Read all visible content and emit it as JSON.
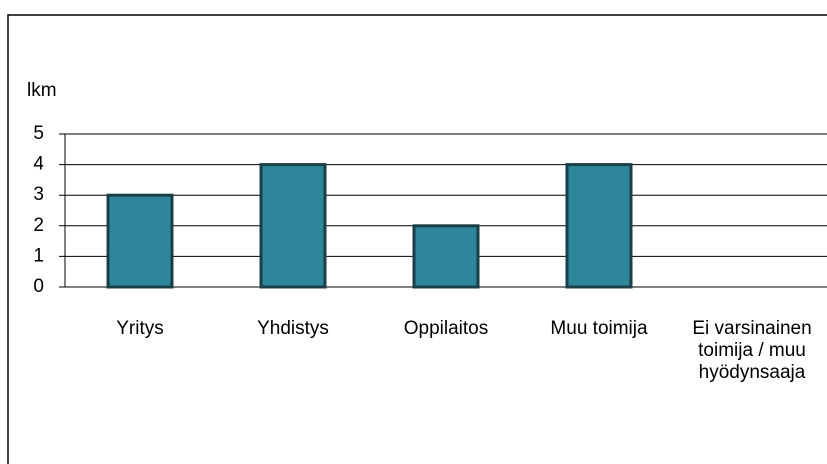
{
  "chart_data": {
    "type": "bar",
    "y_label": "lkm",
    "categories": [
      "Yritys",
      "Yhdistys",
      "Oppilaitos",
      "Muu toimija",
      "Ei varsinainen toimija / muu hyödynsaaja"
    ],
    "values": [
      3,
      4,
      2,
      4,
      0
    ],
    "color": "#2e869a",
    "ylim": [
      0,
      5
    ],
    "yticks": [
      0,
      1,
      2,
      3,
      4,
      5
    ],
    "grid": true
  }
}
